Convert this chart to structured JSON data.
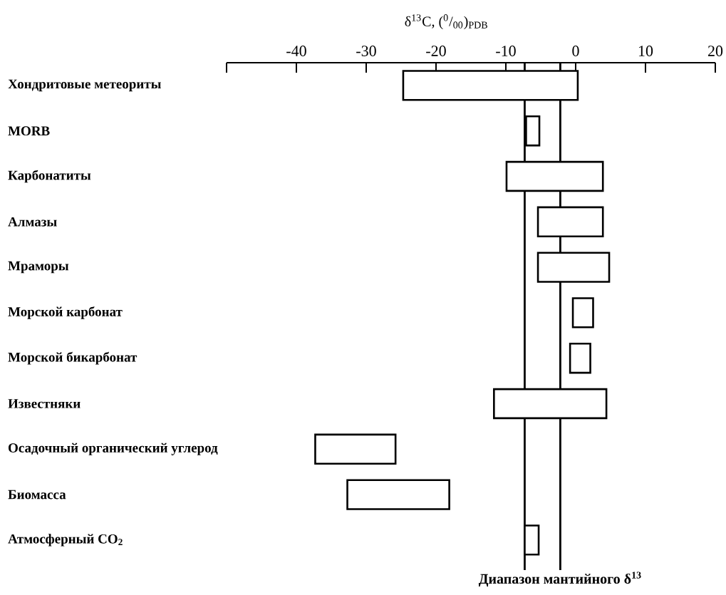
{
  "chart_data": {
    "type": "bar",
    "orientation": "horizontal",
    "xlabel": "δ$^{13}$C, ($^{0}$/$_{00}$)$_{PDB}$",
    "categories": [
      "Хондритовые метеориты",
      "MORB",
      "Карбонатиты",
      "Алмазы",
      "Мраморы",
      "Морской карбонат",
      "Морской бикарбонат",
      "Известняки",
      "Осадочный органический углерод",
      "Биомасса",
      "Атмосферный CO$_{2}$"
    ],
    "base": [
      -24.7,
      -7.1,
      -9.9,
      -5.4,
      -5.4,
      -0.4,
      -0.8,
      -11.7,
      -37.3,
      -32.7,
      -7.3
    ],
    "values": [
      25.0,
      1.9,
      13.8,
      9.3,
      10.2,
      2.9,
      2.9,
      16.1,
      11.5,
      14.6,
      2.0
    ],
    "xlim": [
      -50,
      20
    ],
    "xticks": [
      {
        "value": -50,
        "label": null
      },
      -40,
      -30,
      -20,
      -10,
      0,
      10,
      20
    ],
    "ref_lines": [
      {
        "axis": "x",
        "value": -7.3
      },
      {
        "axis": "x",
        "value": -2.2,
        "label": "Диапазон мантийного δ$^{13}$"
      }
    ],
    "grid": false
  }
}
